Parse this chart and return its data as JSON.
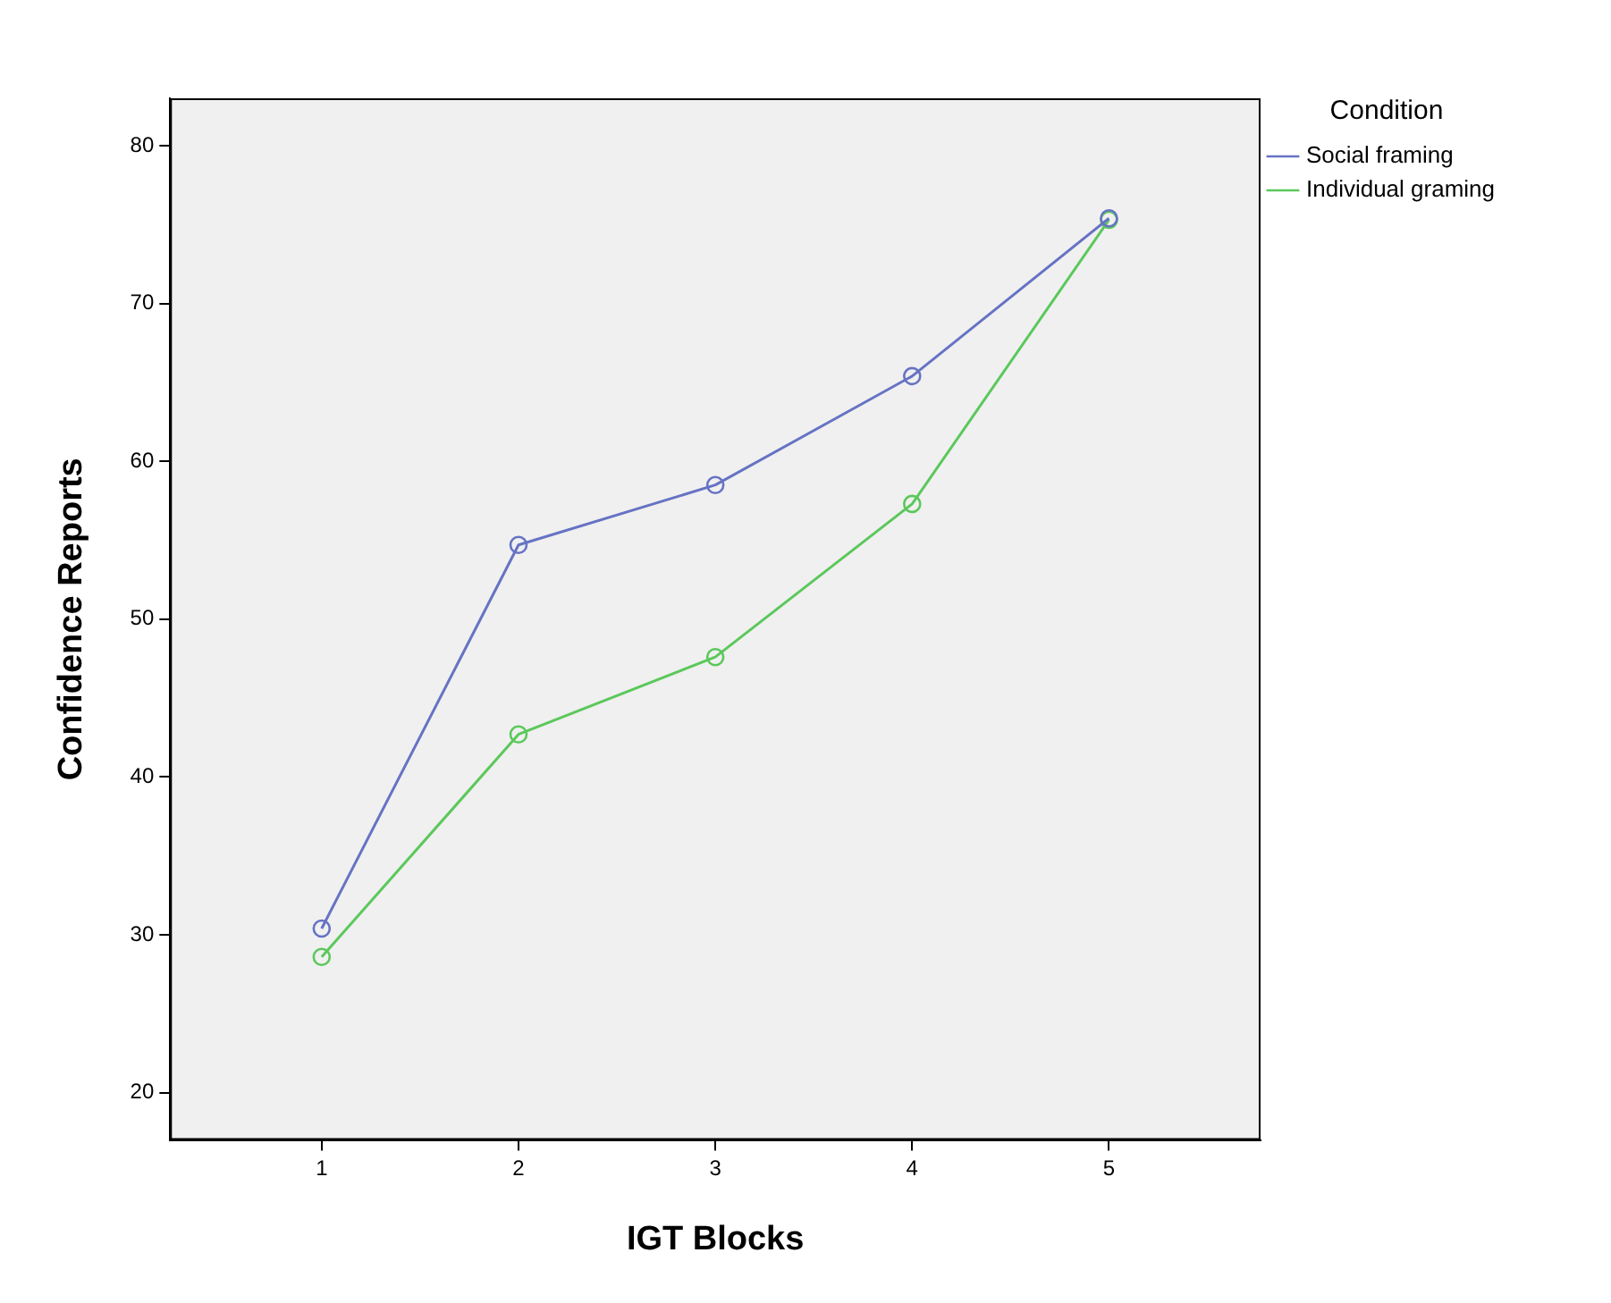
{
  "chart_data": {
    "type": "line",
    "xlabel": "IGT Blocks",
    "ylabel": "Confidence Reports",
    "legend_title": "Condition",
    "x": [
      1,
      2,
      3,
      4,
      5
    ],
    "xlim": [
      0.23,
      5.77
    ],
    "xticks": [
      1,
      2,
      3,
      4,
      5
    ],
    "ylim": [
      17,
      83
    ],
    "yticks": [
      20,
      30,
      40,
      50,
      60,
      70,
      80
    ],
    "series": [
      {
        "name": "Social framing",
        "color": "#6673c4",
        "values": [
          30.4,
          54.7,
          58.5,
          65.4,
          75.4
        ]
      },
      {
        "name": "Individual graming",
        "color": "#5bc85b",
        "values": [
          28.6,
          42.7,
          47.6,
          57.3,
          75.3
        ]
      }
    ],
    "marker": "circle",
    "line_style": "solid",
    "grid": false,
    "legend": "top right"
  }
}
